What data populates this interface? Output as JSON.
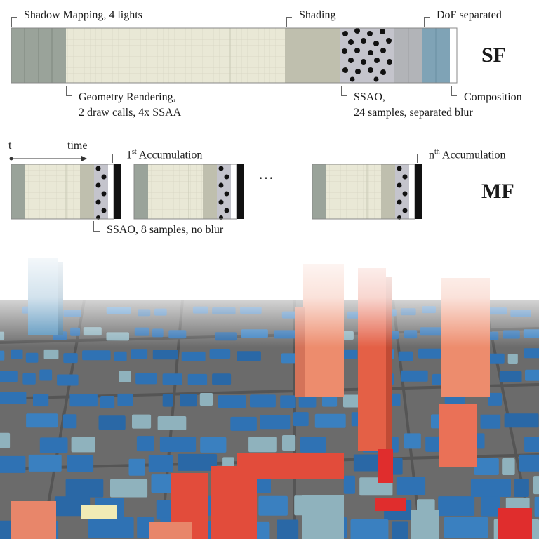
{
  "sf": {
    "label": "SF",
    "labels": {
      "shadow": "Shadow Mapping, 4 lights",
      "geometry_line1": "Geometry Rendering,",
      "geometry_line2": "2 draw calls, 4x SSAA",
      "shading": "Shading",
      "ssao_line1": "SSAO,",
      "ssao_line2": "24 samples, separated blur",
      "dof": "DoF separated",
      "composition": "Composition"
    }
  },
  "mf": {
    "label": "MF",
    "time_t": "t",
    "time_label": "time",
    "first_prefix": "1",
    "first_sup": "st",
    "first_suffix": " Accumulation",
    "nth_prefix": "n",
    "nth_sup": "th",
    "nth_suffix": " Accumulation",
    "ellipsis": "…",
    "ssao_label": "SSAO, 8 samples, no blur"
  },
  "colors": {
    "shadow": "#9aa39a",
    "geometry": "#e9e8d6",
    "shading": "#bfbfae",
    "ssao_bg": "#c4c4cc",
    "dof": "#7fa3b6",
    "building_blue": "#2f72b4",
    "building_red": "#e0553f",
    "building_salmon": "#e8866a",
    "ground": "#6a6a6a"
  }
}
